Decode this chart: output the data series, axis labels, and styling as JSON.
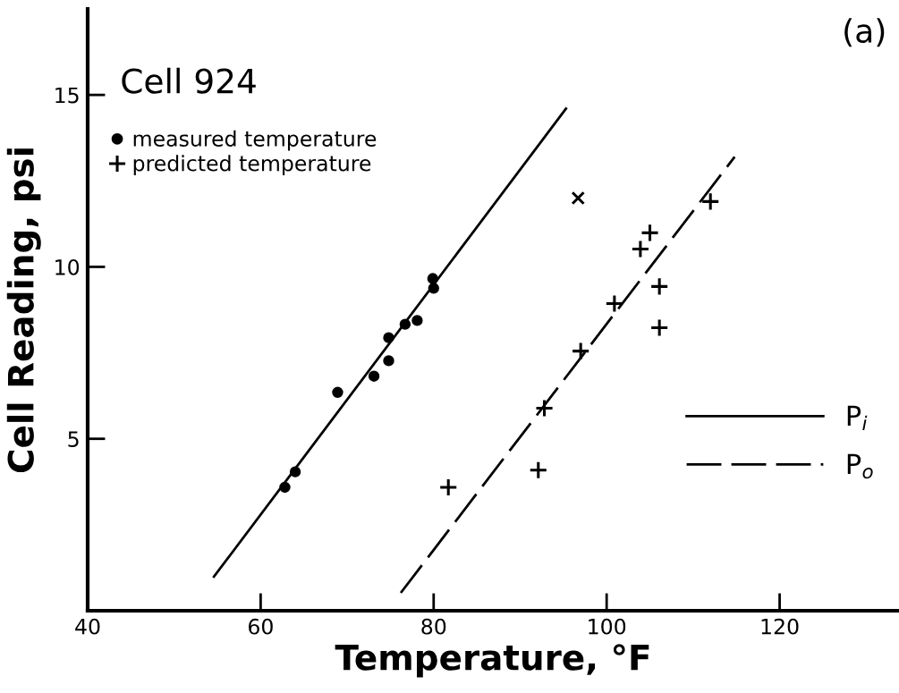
{
  "chart_data": {
    "type": "scatter",
    "title": "Cell 924",
    "xlabel": "Temperature, °F",
    "ylabel": "Cell Reading, psi",
    "xlim": [
      40,
      133.8
    ],
    "ylim": [
      0,
      17.5
    ],
    "xticks": [
      40,
      60,
      80,
      100,
      120
    ],
    "yticks": [
      5,
      10,
      15
    ],
    "grid": false,
    "legend": "top left",
    "series": [
      {
        "name": "measured temperature",
        "marker": "circle",
        "color": "#000000",
        "x": [
          79.9,
          80.0,
          76.7,
          78.1,
          74.8,
          74.8,
          73.1,
          68.9,
          64.0,
          62.8
        ],
        "values": [
          9.66,
          9.38,
          8.33,
          8.44,
          7.94,
          7.27,
          6.82,
          6.35,
          4.04,
          3.59
        ]
      },
      {
        "name": "predicted temperature",
        "marker": "cross",
        "color": "#000000",
        "x": [
          112.0,
          105.0,
          103.9,
          106.1,
          106.1,
          100.9,
          97.0,
          92.8,
          92.1,
          81.7
        ],
        "values": [
          11.9,
          10.99,
          10.52,
          9.43,
          8.23,
          8.93,
          7.55,
          5.89,
          4.09,
          3.59
        ]
      },
      {
        "marker": "x",
        "color": "#000000",
        "x": [
          96.7
        ],
        "values": [
          12.0
        ]
      },
      {
        "name": "P$_{i}$",
        "type": "line",
        "line_style": "solid",
        "color": "#000000",
        "x": [
          54.6,
          95.3
        ],
        "values": [
          0.99,
          14.6
        ]
      },
      {
        "name": "P$_{o}$",
        "type": "line",
        "line_style": "dashed",
        "color": "#000000",
        "x": [
          76.2,
          114.8
        ],
        "values": [
          0.52,
          13.2
        ]
      }
    ],
    "annotations": [
      "(a)"
    ]
  }
}
